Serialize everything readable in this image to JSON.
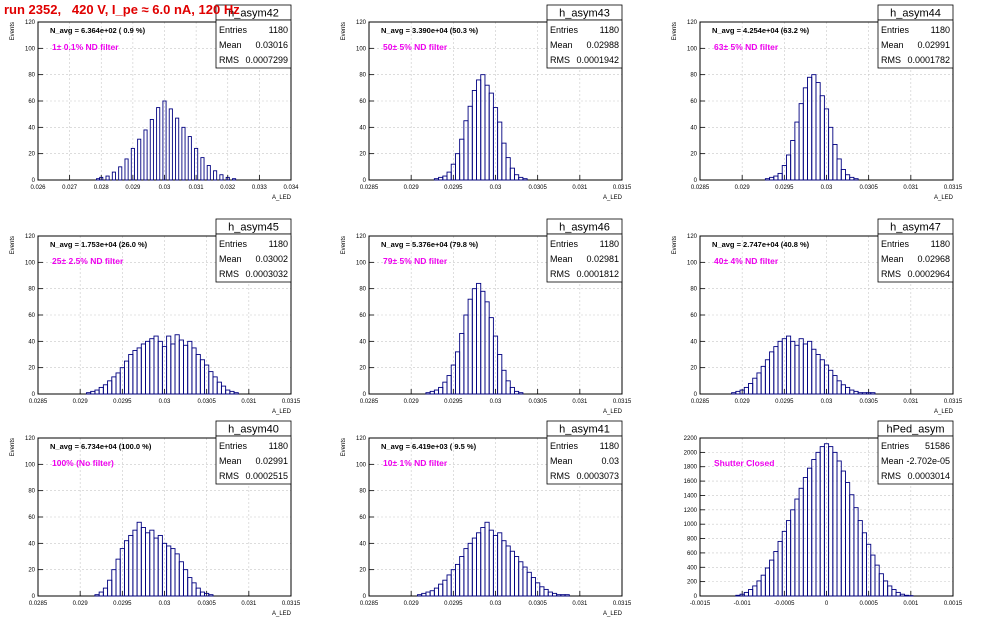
{
  "page": {
    "title": "run 2352,   420 V, I_pe ≈ 6.0 nA, 120 Hz"
  },
  "colors": {
    "histogram": "#000080",
    "title_text": "#e00000",
    "annotation_text": "#ee00ee",
    "grid": "#c8c8c8"
  },
  "chart_data": [
    {
      "type": "histogram",
      "name": "h_asym42",
      "stats": {
        "entries": "1180",
        "mean": "0.03016",
        "rms": "0.0007299"
      },
      "navg_label": "N_avg = 6.364e+02 ( 0.9 %)",
      "filter_label": "1± 0.1% ND filter",
      "xlabel": "A_LED",
      "ylabel": "Events",
      "xlim": [
        0.026,
        0.034
      ],
      "ylim": [
        0,
        120
      ],
      "xticks": [
        "0.026",
        "0.027",
        "0.028",
        "0.029",
        "0.03",
        "0.031",
        "0.032",
        "0.033",
        "0.034"
      ],
      "yticks": [
        "0",
        "20",
        "40",
        "60",
        "80",
        "100",
        "120"
      ],
      "grid": true,
      "x_centers": [
        0.0279,
        0.028,
        0.0282,
        0.0284,
        0.0286,
        0.0288,
        0.029,
        0.0292,
        0.0294,
        0.0296,
        0.0298,
        0.03,
        0.0302,
        0.0304,
        0.0306,
        0.0308,
        0.031,
        0.0312,
        0.0314,
        0.0316,
        0.0318,
        0.032,
        0.0322
      ],
      "values": [
        1,
        2,
        3,
        6,
        10,
        16,
        24,
        31,
        38,
        46,
        55,
        60,
        54,
        47,
        40,
        33,
        24,
        17,
        11,
        7,
        4,
        2,
        1
      ]
    },
    {
      "type": "histogram",
      "name": "h_asym43",
      "stats": {
        "entries": "1180",
        "mean": "0.02988",
        "rms": "0.0001942"
      },
      "navg_label": "N_avg = 3.390e+04 (50.3 %)",
      "filter_label": "50± 5% ND filter",
      "xlabel": "A_LED",
      "ylabel": "Events",
      "xlim": [
        0.0285,
        0.0315
      ],
      "ylim": [
        0,
        120
      ],
      "xticks": [
        "0.0285",
        "0.029",
        "0.0295",
        "0.03",
        "0.0305",
        "0.031",
        "0.0315"
      ],
      "yticks": [
        "0",
        "20",
        "40",
        "60",
        "80",
        "100",
        "120"
      ],
      "grid": true,
      "x_centers": [
        0.0293,
        0.02935,
        0.0294,
        0.02945,
        0.0295,
        0.02955,
        0.0296,
        0.02965,
        0.0297,
        0.02975,
        0.0298,
        0.02985,
        0.0299,
        0.02995,
        0.03,
        0.03005,
        0.0301,
        0.03015,
        0.0302,
        0.03025,
        0.0303,
        0.03035
      ],
      "values": [
        1,
        2,
        3,
        6,
        12,
        20,
        31,
        45,
        56,
        68,
        76,
        80,
        72,
        66,
        55,
        44,
        28,
        17,
        9,
        4,
        2,
        1
      ]
    },
    {
      "type": "histogram",
      "name": "h_asym44",
      "stats": {
        "entries": "1180",
        "mean": "0.02991",
        "rms": "0.0001782"
      },
      "navg_label": "N_avg = 4.254e+04 (63.2 %)",
      "filter_label": "63± 5% ND filter",
      "xlabel": "A_LED",
      "ylabel": "Events",
      "xlim": [
        0.0285,
        0.0315
      ],
      "ylim": [
        0,
        120
      ],
      "xticks": [
        "0.0285",
        "0.029",
        "0.0295",
        "0.03",
        "0.0305",
        "0.031",
        "0.0315"
      ],
      "yticks": [
        "0",
        "20",
        "40",
        "60",
        "80",
        "100",
        "120"
      ],
      "grid": true,
      "x_centers": [
        0.0293,
        0.02935,
        0.0294,
        0.02945,
        0.0295,
        0.02955,
        0.0296,
        0.02965,
        0.0297,
        0.02975,
        0.0298,
        0.02985,
        0.0299,
        0.02995,
        0.03,
        0.03005,
        0.0301,
        0.03015,
        0.0302,
        0.03025,
        0.0303,
        0.03035
      ],
      "values": [
        1,
        2,
        3,
        5,
        11,
        19,
        30,
        44,
        58,
        70,
        78,
        80,
        74,
        64,
        54,
        40,
        27,
        16,
        8,
        4,
        2,
        1
      ]
    },
    {
      "type": "histogram",
      "name": "h_asym45",
      "stats": {
        "entries": "1180",
        "mean": "0.03002",
        "rms": "0.0003032"
      },
      "navg_label": "N_avg = 1.753e+04 (26.0 %)",
      "filter_label": "25± 2.5% ND filter",
      "xlabel": "A_LED",
      "ylabel": "Events",
      "xlim": [
        0.0285,
        0.0315
      ],
      "ylim": [
        0,
        120
      ],
      "xticks": [
        "0.0285",
        "0.029",
        "0.0295",
        "0.03",
        "0.0305",
        "0.031",
        "0.0315"
      ],
      "yticks": [
        "0",
        "20",
        "40",
        "60",
        "80",
        "100",
        "120"
      ],
      "grid": true,
      "x_centers": [
        0.0291,
        0.02915,
        0.0292,
        0.02925,
        0.0293,
        0.02935,
        0.0294,
        0.02945,
        0.0295,
        0.02955,
        0.0296,
        0.02965,
        0.0297,
        0.02975,
        0.0298,
        0.02985,
        0.0299,
        0.02995,
        0.03,
        0.03005,
        0.0301,
        0.03015,
        0.0302,
        0.03025,
        0.0303,
        0.03035,
        0.0304,
        0.03045,
        0.0305,
        0.03055,
        0.0306,
        0.03065,
        0.0307,
        0.03075,
        0.0308,
        0.03085
      ],
      "values": [
        1,
        2,
        3,
        5,
        7,
        10,
        13,
        16,
        20,
        25,
        30,
        33,
        35,
        38,
        40,
        42,
        44,
        40,
        36,
        44,
        38,
        45,
        41,
        37,
        40,
        35,
        30,
        26,
        22,
        17,
        13,
        9,
        6,
        3,
        2,
        1
      ]
    },
    {
      "type": "histogram",
      "name": "h_asym46",
      "stats": {
        "entries": "1180",
        "mean": "0.02981",
        "rms": "0.0001812"
      },
      "navg_label": "N_avg = 5.376e+04 (79.8 %)",
      "filter_label": "79± 5% ND filter",
      "xlabel": "A_LED",
      "ylabel": "Events",
      "xlim": [
        0.0285,
        0.0315
      ],
      "ylim": [
        0,
        120
      ],
      "xticks": [
        "0.0285",
        "0.029",
        "0.0295",
        "0.03",
        "0.0305",
        "0.031",
        "0.0315"
      ],
      "yticks": [
        "0",
        "20",
        "40",
        "60",
        "80",
        "100",
        "120"
      ],
      "grid": true,
      "x_centers": [
        0.0292,
        0.02925,
        0.0293,
        0.02935,
        0.0294,
        0.02945,
        0.0295,
        0.02955,
        0.0296,
        0.02965,
        0.0297,
        0.02975,
        0.0298,
        0.02985,
        0.0299,
        0.02995,
        0.03,
        0.03005,
        0.0301,
        0.03015,
        0.0302,
        0.03025,
        0.0303
      ],
      "values": [
        1,
        2,
        3,
        5,
        9,
        14,
        22,
        32,
        46,
        60,
        72,
        80,
        84,
        78,
        70,
        58,
        44,
        30,
        18,
        10,
        5,
        2,
        1
      ]
    },
    {
      "type": "histogram",
      "name": "h_asym47",
      "stats": {
        "entries": "1180",
        "mean": "0.02968",
        "rms": "0.0002964"
      },
      "navg_label": "N_avg = 2.747e+04 (40.8 %)",
      "filter_label": "40± 4% ND filter",
      "xlabel": "A_LED",
      "ylabel": "Events",
      "xlim": [
        0.0285,
        0.0315
      ],
      "ylim": [
        0,
        120
      ],
      "xticks": [
        "0.0285",
        "0.029",
        "0.0295",
        "0.03",
        "0.0305",
        "0.031",
        "0.0315"
      ],
      "yticks": [
        "0",
        "20",
        "40",
        "60",
        "80",
        "100",
        "120"
      ],
      "grid": true,
      "x_centers": [
        0.0289,
        0.02895,
        0.029,
        0.02905,
        0.0291,
        0.02915,
        0.0292,
        0.02925,
        0.0293,
        0.02935,
        0.0294,
        0.02945,
        0.0295,
        0.02955,
        0.0296,
        0.02965,
        0.0297,
        0.02975,
        0.0298,
        0.02985,
        0.0299,
        0.02995,
        0.03,
        0.03005,
        0.0301,
        0.03015,
        0.0302,
        0.03025,
        0.0303,
        0.03035,
        0.0304,
        0.03045,
        0.0305,
        0.03055
      ],
      "values": [
        1,
        2,
        3,
        5,
        8,
        12,
        16,
        21,
        26,
        32,
        36,
        40,
        42,
        44,
        40,
        37,
        42,
        38,
        40,
        34,
        30,
        26,
        22,
        18,
        14,
        10,
        7,
        5,
        3,
        2,
        1,
        1,
        1,
        1
      ]
    },
    {
      "type": "histogram",
      "name": "h_asym40",
      "stats": {
        "entries": "1180",
        "mean": "0.02991",
        "rms": "0.0002515"
      },
      "navg_label": "N_avg = 6.734e+04 (100.0 %)",
      "filter_label": "100% (No filter)",
      "xlabel": "A_LED",
      "ylabel": "Events",
      "xlim": [
        0.0285,
        0.0315
      ],
      "ylim": [
        0,
        120
      ],
      "xticks": [
        "0.0285",
        "0.029",
        "0.0295",
        "0.03",
        "0.0305",
        "0.031",
        "0.0315"
      ],
      "yticks": [
        "0",
        "20",
        "40",
        "60",
        "80",
        "100",
        "120"
      ],
      "grid": true,
      "x_centers": [
        0.0292,
        0.02925,
        0.0293,
        0.02935,
        0.0294,
        0.02945,
        0.0295,
        0.02955,
        0.0296,
        0.02965,
        0.0297,
        0.02975,
        0.0298,
        0.02985,
        0.0299,
        0.02995,
        0.03,
        0.03005,
        0.0301,
        0.03015,
        0.0302,
        0.03025,
        0.0303,
        0.03035,
        0.0304,
        0.03045,
        0.0305,
        0.03055
      ],
      "values": [
        1,
        3,
        6,
        12,
        20,
        28,
        36,
        42,
        46,
        50,
        56,
        52,
        48,
        50,
        44,
        46,
        40,
        38,
        36,
        32,
        26,
        20,
        14,
        10,
        6,
        3,
        2,
        1
      ]
    },
    {
      "type": "histogram",
      "name": "h_asym41",
      "stats": {
        "entries": "1180",
        "mean": "0.03",
        "rms": "0.0003073"
      },
      "navg_label": "N_avg = 6.419e+03 ( 9.5 %)",
      "filter_label": "10± 1% ND filter",
      "xlabel": "A_LED",
      "ylabel": "Events",
      "xlim": [
        0.0285,
        0.0315
      ],
      "ylim": [
        0,
        120
      ],
      "xticks": [
        "0.0285",
        "0.029",
        "0.0295",
        "0.03",
        "0.0305",
        "0.031",
        "0.0315"
      ],
      "yticks": [
        "0",
        "20",
        "40",
        "60",
        "80",
        "100",
        "120"
      ],
      "grid": true,
      "x_centers": [
        0.0291,
        0.02915,
        0.0292,
        0.02925,
        0.0293,
        0.02935,
        0.0294,
        0.02945,
        0.0295,
        0.02955,
        0.0296,
        0.02965,
        0.0297,
        0.02975,
        0.0298,
        0.02985,
        0.0299,
        0.02995,
        0.03,
        0.03005,
        0.0301,
        0.03015,
        0.0302,
        0.03025,
        0.0303,
        0.03035,
        0.0304,
        0.03045,
        0.0305,
        0.03055,
        0.0306,
        0.03065,
        0.0307,
        0.03075,
        0.0308,
        0.03085
      ],
      "values": [
        1,
        2,
        3,
        4,
        6,
        9,
        12,
        16,
        20,
        24,
        30,
        36,
        40,
        44,
        48,
        52,
        56,
        50,
        46,
        48,
        42,
        38,
        34,
        30,
        26,
        22,
        18,
        14,
        10,
        7,
        5,
        3,
        2,
        1,
        1,
        1
      ]
    },
    {
      "type": "histogram",
      "name": "hPed_asym",
      "stats": {
        "entries": "51586",
        "mean": "-2.702e-05",
        "rms": "0.0003014"
      },
      "navg_label": "",
      "filter_label": "Shutter Closed",
      "xlabel": "",
      "ylabel": "",
      "xlim": [
        -0.0015,
        0.0015
      ],
      "ylim": [
        0,
        2200
      ],
      "xticks": [
        "-0.0015",
        "-0.001",
        "-0.0005",
        "0",
        "0.0005",
        "0.001",
        "0.0015"
      ],
      "yticks": [
        "0",
        "200",
        "400",
        "600",
        "800",
        "1000",
        "1200",
        "1400",
        "1600",
        "1800",
        "2000",
        "2200"
      ],
      "grid": true,
      "x_centers": [
        -0.00105,
        -0.001,
        -0.00095,
        -0.0009,
        -0.00085,
        -0.0008,
        -0.00075,
        -0.0007,
        -0.00065,
        -0.0006,
        -0.00055,
        -0.0005,
        -0.00045,
        -0.0004,
        -0.00035,
        -0.0003,
        -0.00025,
        -0.0002,
        -0.00015,
        -0.0001,
        -5e-05,
        0,
        5e-05,
        0.0001,
        0.00015,
        0.0002,
        0.00025,
        0.0003,
        0.00035,
        0.0004,
        0.00045,
        0.0005,
        0.00055,
        0.0006,
        0.00065,
        0.0007,
        0.00075,
        0.0008,
        0.00085,
        0.0009,
        0.00095,
        0.001
      ],
      "values": [
        10,
        25,
        50,
        90,
        140,
        210,
        290,
        390,
        500,
        620,
        760,
        900,
        1050,
        1200,
        1350,
        1500,
        1650,
        1780,
        1900,
        2000,
        2080,
        2120,
        2080,
        2000,
        1880,
        1740,
        1580,
        1410,
        1230,
        1050,
        880,
        720,
        570,
        430,
        310,
        210,
        140,
        90,
        50,
        25,
        10,
        5
      ]
    }
  ]
}
